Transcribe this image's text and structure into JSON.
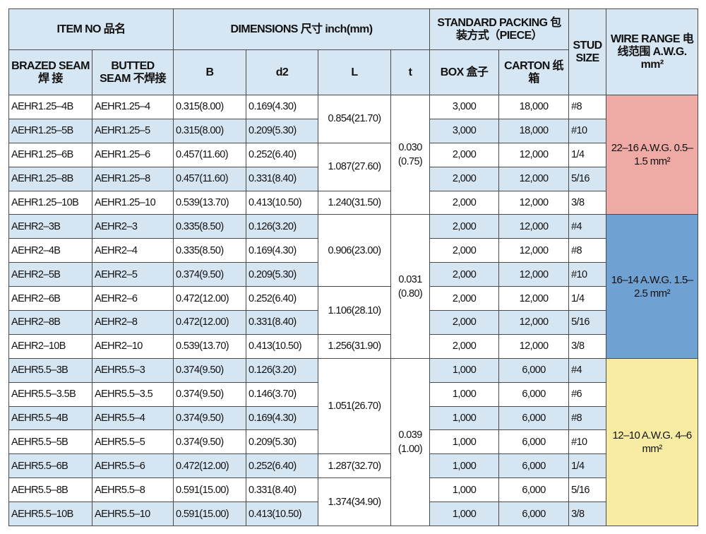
{
  "header": {
    "item_no": "ITEM NO 品名",
    "dimensions": "DIMENSIONS 尺寸  inch(mm)",
    "packing": "STANDARD PACKING 包装方式（PIECE）",
    "stud": "STUD SIZE",
    "wire": "WIRE RANGE 电线范围 A.W.G. mm²",
    "brazed": "BRAZED SEAM 焊 接",
    "butted": "BUTTED SEAM 不焊接",
    "B": "B",
    "d2": "d2",
    "L": "L",
    "t": "t",
    "box": "BOX 盒子",
    "carton": "CARTON 纸 箱"
  },
  "colors": {
    "header": "#d6e6f3",
    "row_alt": "#d5e5f2",
    "wire_1": "#f0aaa6",
    "wire_2": "#6fa1d2",
    "wire_3": "#f8eca2"
  },
  "groups": [
    {
      "t": "0.030 (0.75)",
      "wire": "22–16 A.W.G. 0.5–1.5  mm²",
      "L": [
        {
          "value": "0.854(21.70)",
          "span": 2
        },
        {
          "value": "1.087(27.60)",
          "span": 2
        },
        {
          "value": "1.240(31.50)",
          "span": 1
        }
      ],
      "rows": [
        [
          "AEHR1.25–4B",
          "AEHR1.25–4",
          "0.315(8.00)",
          "0.169(4.30)",
          "3,000",
          "18,000",
          "#8"
        ],
        [
          "AEHR1.25–5B",
          "AEHR1.25–5",
          "0.315(8.00)",
          "0.209(5.30)",
          "3,000",
          "18,000",
          "#10"
        ],
        [
          "AEHR1.25–6B",
          "AEHR1.25–6",
          "0.457(11.60)",
          "0.252(6.40)",
          "2,000",
          "12,000",
          "1/4"
        ],
        [
          "AEHR1.25–8B",
          "AEHR1.25–8",
          "0.457(11.60)",
          "0.331(8.40)",
          "2,000",
          "12,000",
          "5/16"
        ],
        [
          "AEHR1.25–10B",
          "AEHR1.25–10",
          "0.539(13.70)",
          "0.413(10.50)",
          "2,000",
          "12,000",
          "3/8"
        ]
      ]
    },
    {
      "t": "0.031 (0.80)",
      "wire": "16–14 A.W.G. 1.5–2.5  mm²",
      "L": [
        {
          "value": "0.906(23.00)",
          "span": 3
        },
        {
          "value": "1.106(28.10)",
          "span": 2
        },
        {
          "value": "1.256(31.90)",
          "span": 1
        }
      ],
      "rows": [
        [
          "AEHR2–3B",
          "AEHR2–3",
          "0.335(8.50)",
          "0.126(3.20)",
          "2,000",
          "12,000",
          "#4"
        ],
        [
          "AEHR2–4B",
          "AEHR2–4",
          "0.335(8.50)",
          "0.169(4.30)",
          "2,000",
          "12,000",
          "#8"
        ],
        [
          "AEHR2–5B",
          "AEHR2–5",
          "0.374(9.50)",
          "0.209(5.30)",
          "2,000",
          "12,000",
          "#10"
        ],
        [
          "AEHR2–6B",
          "AEHR2–6",
          "0.472(12.00)",
          "0.252(6.40)",
          "2,000",
          "12,000",
          "1/4"
        ],
        [
          "AEHR2–8B",
          "AEHR2–8",
          "0.472(12.00)",
          "0.331(8.40)",
          "2,000",
          "12,000",
          "5/16"
        ],
        [
          "AEHR2–10B",
          "AEHR2–10",
          "0.539(13.70)",
          "0.413(10.50)",
          "2,000",
          "12,000",
          "3/8"
        ]
      ]
    },
    {
      "t": "0.039 (1.00)",
      "wire": "12–10 A.W.G. 4–6  mm²",
      "L": [
        {
          "value": "1.051(26.70)",
          "span": 4
        },
        {
          "value": "1.287(32.70)",
          "span": 1
        },
        {
          "value": "1.374(34.90)",
          "span": 2
        }
      ],
      "rows": [
        [
          "AEHR5.5–3B",
          "AEHR5.5–3",
          "0.374(9.50)",
          "0.126(3.20)",
          "1,000",
          "6,000",
          "#4"
        ],
        [
          "AEHR5.5–3.5B",
          "AEHR5.5–3.5",
          "0.374(9.50)",
          "0.146(3.70)",
          "1,000",
          "6,000",
          "#6"
        ],
        [
          "AEHR5.5–4B",
          "AEHR5.5–4",
          "0.374(9.50)",
          "0.169(4.30)",
          "1,000",
          "6,000",
          "#8"
        ],
        [
          "AEHR5.5–5B",
          "AEHR5.5–5",
          "0.374(9.50)",
          "0.209(5.30)",
          "1,000",
          "6,000",
          "#10"
        ],
        [
          "AEHR5.5–6B",
          "AEHR5.5–6",
          "0.472(12.00)",
          "0.252(6.40)",
          "1,000",
          "6,000",
          "1/4"
        ],
        [
          "AEHR5.5–8B",
          "AEHR5.5–8",
          "0.591(15.00)",
          "0.331(8.40)",
          "1,000",
          "6,000",
          "5/16"
        ],
        [
          "AEHR5.5–10B",
          "AEHR5.5–10",
          "0.591(15.00)",
          "0.413(10.50)",
          "1,000",
          "6,000",
          "3/8"
        ]
      ]
    }
  ]
}
